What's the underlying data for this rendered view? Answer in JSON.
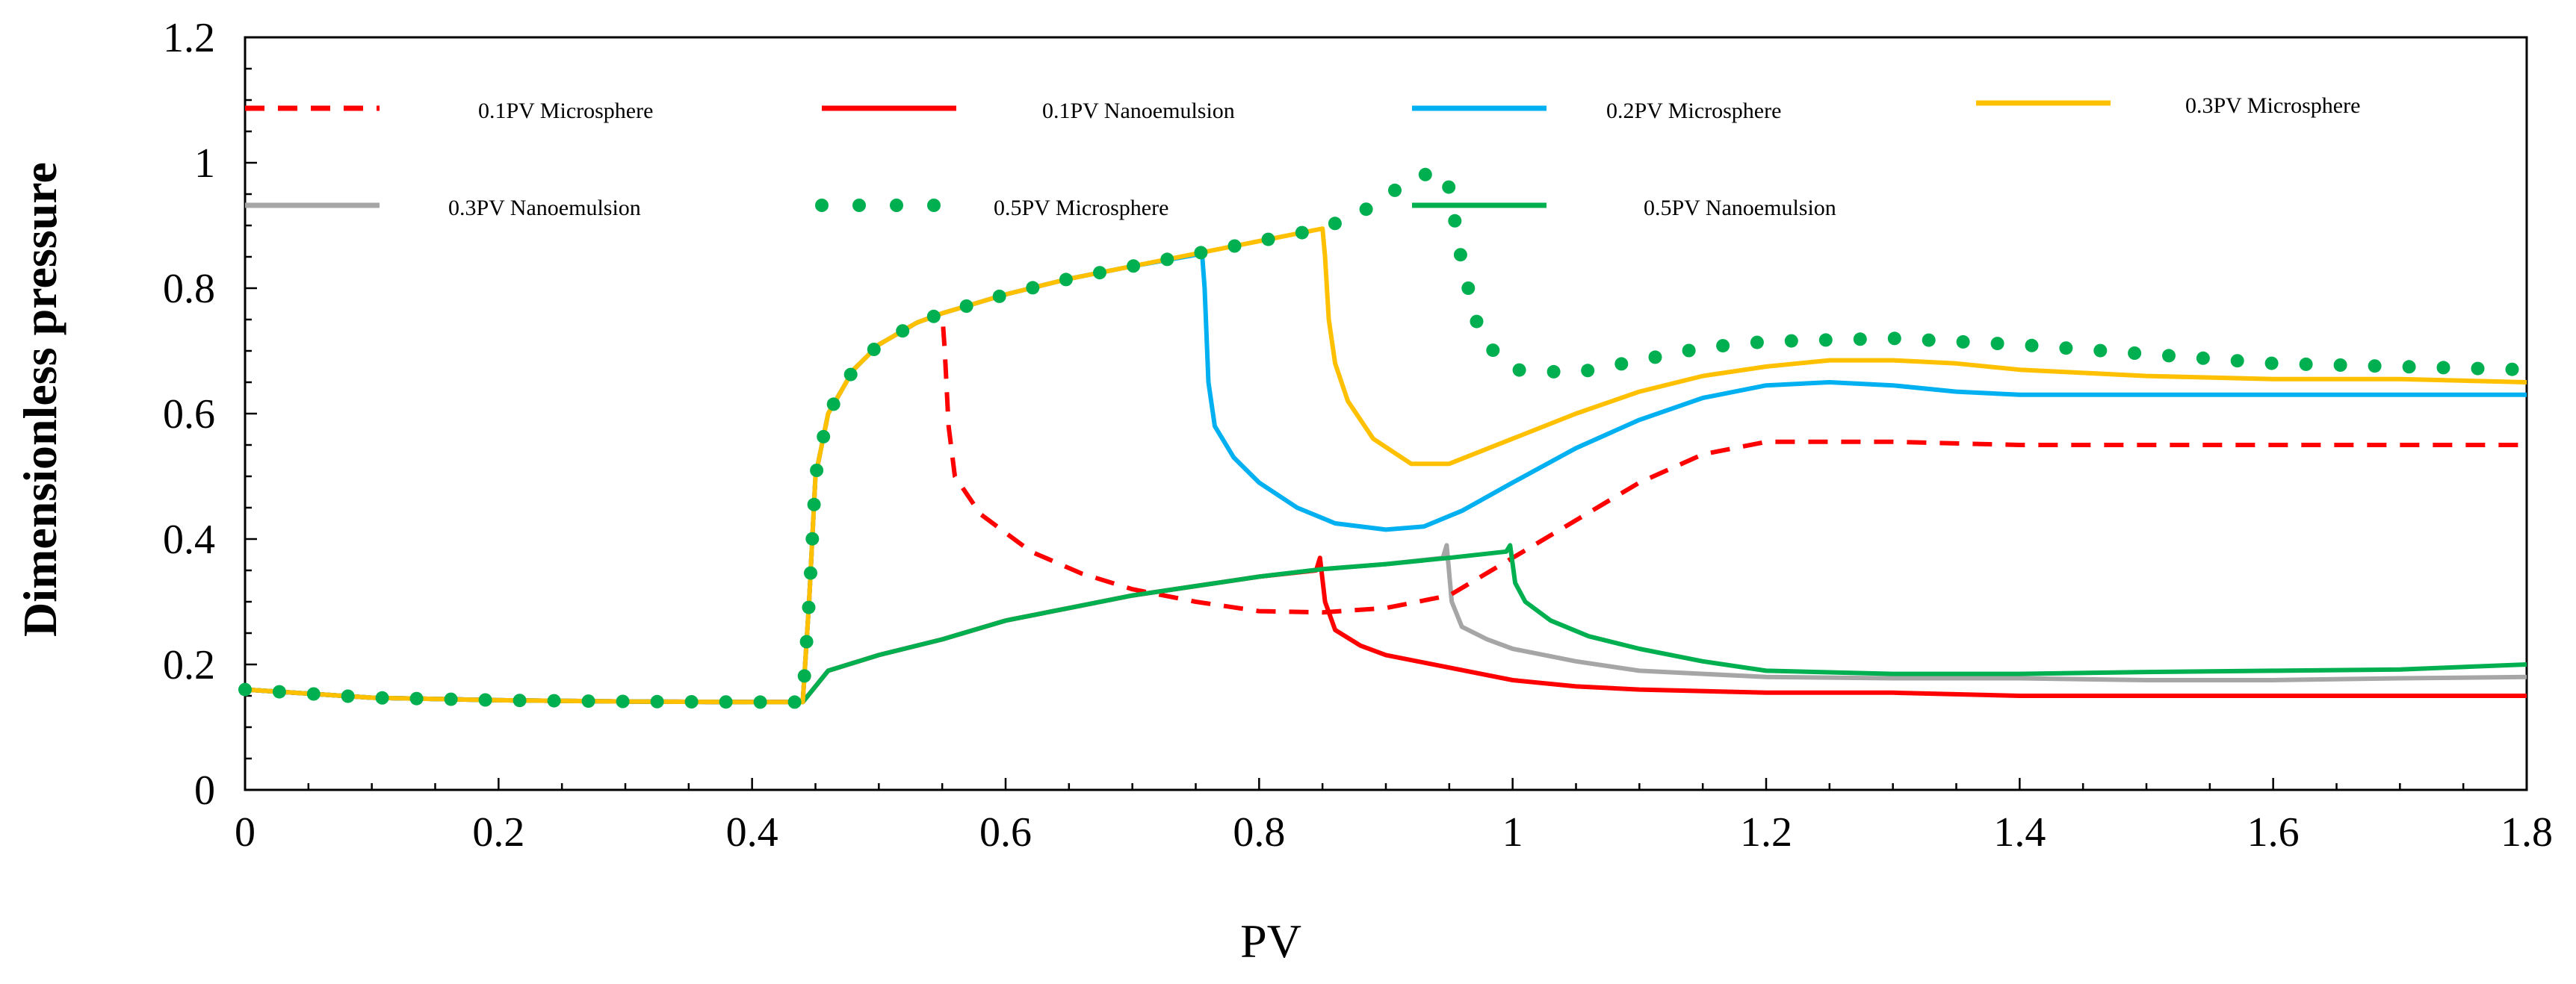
{
  "chart_data": {
    "type": "line",
    "title": "",
    "xlabel": "PV",
    "ylabel": "Dimensionless pressure",
    "xlim": [
      0,
      1.8
    ],
    "ylim": [
      0,
      1.2
    ],
    "xticks": [
      0,
      0.2,
      0.4,
      0.6,
      0.8,
      1,
      1.2,
      1.4,
      1.6,
      1.8
    ],
    "xtick_labels": [
      "0",
      "0.2",
      "0.4",
      "0.6",
      "0.8",
      "1",
      "1.2",
      "1.4",
      "1.6",
      "1.8"
    ],
    "yticks": [
      0,
      0.2,
      0.4,
      0.6,
      0.8,
      1,
      1.2
    ],
    "ytick_labels": [
      "0",
      "0.2",
      "0.4",
      "0.6",
      "0.8",
      "1",
      "1.2"
    ],
    "grid": false,
    "legend_position": "top, inside plot",
    "series": [
      {
        "name": "0.1PV Microsphere",
        "color": "#ff0000",
        "style": "dashed",
        "points": [
          [
            0,
            0.16
          ],
          [
            0.1,
            0.147
          ],
          [
            0.2,
            0.143
          ],
          [
            0.3,
            0.141
          ],
          [
            0.4,
            0.14
          ],
          [
            0.44,
            0.14
          ],
          [
            0.445,
            0.3
          ],
          [
            0.45,
            0.5
          ],
          [
            0.46,
            0.6
          ],
          [
            0.48,
            0.67
          ],
          [
            0.5,
            0.71
          ],
          [
            0.53,
            0.745
          ],
          [
            0.55,
            0.76
          ],
          [
            0.552,
            0.7
          ],
          [
            0.555,
            0.58
          ],
          [
            0.56,
            0.5
          ],
          [
            0.58,
            0.44
          ],
          [
            0.62,
            0.38
          ],
          [
            0.66,
            0.345
          ],
          [
            0.7,
            0.32
          ],
          [
            0.75,
            0.3
          ],
          [
            0.8,
            0.285
          ],
          [
            0.85,
            0.283
          ],
          [
            0.9,
            0.29
          ],
          [
            0.95,
            0.31
          ],
          [
            1.0,
            0.37
          ],
          [
            1.05,
            0.43
          ],
          [
            1.1,
            0.49
          ],
          [
            1.15,
            0.535
          ],
          [
            1.2,
            0.555
          ],
          [
            1.3,
            0.555
          ],
          [
            1.4,
            0.55
          ],
          [
            1.5,
            0.55
          ],
          [
            1.6,
            0.55
          ],
          [
            1.7,
            0.55
          ],
          [
            1.8,
            0.55
          ]
        ]
      },
      {
        "name": "0.1PV Nanoemulsion",
        "color": "#ff0000",
        "style": "solid",
        "points": [
          [
            0,
            0.16
          ],
          [
            0.1,
            0.147
          ],
          [
            0.2,
            0.143
          ],
          [
            0.3,
            0.141
          ],
          [
            0.4,
            0.14
          ],
          [
            0.44,
            0.14
          ],
          [
            0.46,
            0.19
          ],
          [
            0.5,
            0.215
          ],
          [
            0.55,
            0.24
          ],
          [
            0.6,
            0.27
          ],
          [
            0.65,
            0.29
          ],
          [
            0.7,
            0.31
          ],
          [
            0.75,
            0.325
          ],
          [
            0.8,
            0.34
          ],
          [
            0.845,
            0.35
          ],
          [
            0.848,
            0.37
          ],
          [
            0.852,
            0.3
          ],
          [
            0.86,
            0.255
          ],
          [
            0.88,
            0.23
          ],
          [
            0.9,
            0.215
          ],
          [
            0.95,
            0.195
          ],
          [
            1.0,
            0.175
          ],
          [
            1.05,
            0.165
          ],
          [
            1.1,
            0.16
          ],
          [
            1.2,
            0.155
          ],
          [
            1.3,
            0.155
          ],
          [
            1.4,
            0.15
          ],
          [
            1.5,
            0.15
          ],
          [
            1.6,
            0.15
          ],
          [
            1.7,
            0.15
          ],
          [
            1.8,
            0.15
          ]
        ]
      },
      {
        "name": "0.2PV Microsphere",
        "color": "#00b0f0",
        "style": "solid",
        "points": [
          [
            0,
            0.16
          ],
          [
            0.1,
            0.147
          ],
          [
            0.2,
            0.143
          ],
          [
            0.3,
            0.141
          ],
          [
            0.4,
            0.14
          ],
          [
            0.44,
            0.14
          ],
          [
            0.445,
            0.3
          ],
          [
            0.45,
            0.5
          ],
          [
            0.46,
            0.6
          ],
          [
            0.48,
            0.67
          ],
          [
            0.5,
            0.71
          ],
          [
            0.53,
            0.745
          ],
          [
            0.55,
            0.76
          ],
          [
            0.6,
            0.79
          ],
          [
            0.65,
            0.815
          ],
          [
            0.7,
            0.835
          ],
          [
            0.755,
            0.855
          ],
          [
            0.757,
            0.8
          ],
          [
            0.76,
            0.65
          ],
          [
            0.765,
            0.58
          ],
          [
            0.78,
            0.53
          ],
          [
            0.8,
            0.49
          ],
          [
            0.83,
            0.45
          ],
          [
            0.86,
            0.425
          ],
          [
            0.9,
            0.415
          ],
          [
            0.93,
            0.42
          ],
          [
            0.96,
            0.445
          ],
          [
            1.0,
            0.49
          ],
          [
            1.05,
            0.545
          ],
          [
            1.1,
            0.59
          ],
          [
            1.15,
            0.625
          ],
          [
            1.2,
            0.645
          ],
          [
            1.25,
            0.65
          ],
          [
            1.3,
            0.645
          ],
          [
            1.35,
            0.635
          ],
          [
            1.4,
            0.63
          ],
          [
            1.5,
            0.63
          ],
          [
            1.6,
            0.63
          ],
          [
            1.7,
            0.63
          ],
          [
            1.8,
            0.63
          ]
        ]
      },
      {
        "name": "0.3PV Microsphere",
        "color": "#ffc000",
        "style": "solid",
        "points": [
          [
            0,
            0.16
          ],
          [
            0.1,
            0.147
          ],
          [
            0.2,
            0.143
          ],
          [
            0.3,
            0.141
          ],
          [
            0.4,
            0.14
          ],
          [
            0.44,
            0.14
          ],
          [
            0.445,
            0.3
          ],
          [
            0.45,
            0.5
          ],
          [
            0.46,
            0.6
          ],
          [
            0.48,
            0.67
          ],
          [
            0.5,
            0.71
          ],
          [
            0.53,
            0.745
          ],
          [
            0.55,
            0.76
          ],
          [
            0.6,
            0.79
          ],
          [
            0.65,
            0.815
          ],
          [
            0.7,
            0.835
          ],
          [
            0.75,
            0.855
          ],
          [
            0.8,
            0.875
          ],
          [
            0.85,
            0.895
          ],
          [
            0.852,
            0.85
          ],
          [
            0.855,
            0.75
          ],
          [
            0.86,
            0.68
          ],
          [
            0.87,
            0.62
          ],
          [
            0.89,
            0.56
          ],
          [
            0.92,
            0.52
          ],
          [
            0.95,
            0.52
          ],
          [
            1.0,
            0.56
          ],
          [
            1.05,
            0.6
          ],
          [
            1.1,
            0.635
          ],
          [
            1.15,
            0.66
          ],
          [
            1.2,
            0.675
          ],
          [
            1.25,
            0.685
          ],
          [
            1.3,
            0.685
          ],
          [
            1.35,
            0.68
          ],
          [
            1.4,
            0.67
          ],
          [
            1.5,
            0.66
          ],
          [
            1.6,
            0.655
          ],
          [
            1.7,
            0.655
          ],
          [
            1.8,
            0.65
          ]
        ]
      },
      {
        "name": "0.3PV Nanoemulsion",
        "color": "#a6a6a6",
        "style": "solid",
        "points": [
          [
            0,
            0.16
          ],
          [
            0.1,
            0.147
          ],
          [
            0.2,
            0.143
          ],
          [
            0.3,
            0.141
          ],
          [
            0.4,
            0.14
          ],
          [
            0.44,
            0.14
          ],
          [
            0.46,
            0.19
          ],
          [
            0.5,
            0.215
          ],
          [
            0.55,
            0.24
          ],
          [
            0.6,
            0.27
          ],
          [
            0.65,
            0.29
          ],
          [
            0.7,
            0.31
          ],
          [
            0.75,
            0.325
          ],
          [
            0.8,
            0.34
          ],
          [
            0.85,
            0.352
          ],
          [
            0.9,
            0.36
          ],
          [
            0.945,
            0.37
          ],
          [
            0.948,
            0.39
          ],
          [
            0.952,
            0.3
          ],
          [
            0.96,
            0.26
          ],
          [
            0.98,
            0.24
          ],
          [
            1.0,
            0.225
          ],
          [
            1.05,
            0.205
          ],
          [
            1.1,
            0.19
          ],
          [
            1.2,
            0.18
          ],
          [
            1.3,
            0.178
          ],
          [
            1.4,
            0.178
          ],
          [
            1.5,
            0.175
          ],
          [
            1.6,
            0.175
          ],
          [
            1.7,
            0.178
          ],
          [
            1.8,
            0.18
          ]
        ]
      },
      {
        "name": "0.5PV Microsphere",
        "color": "#00b050",
        "style": "dotted",
        "points": [
          [
            0,
            0.16
          ],
          [
            0.1,
            0.147
          ],
          [
            0.2,
            0.143
          ],
          [
            0.3,
            0.141
          ],
          [
            0.4,
            0.14
          ],
          [
            0.44,
            0.14
          ],
          [
            0.445,
            0.3
          ],
          [
            0.45,
            0.5
          ],
          [
            0.46,
            0.6
          ],
          [
            0.48,
            0.67
          ],
          [
            0.5,
            0.71
          ],
          [
            0.53,
            0.745
          ],
          [
            0.55,
            0.76
          ],
          [
            0.6,
            0.79
          ],
          [
            0.65,
            0.815
          ],
          [
            0.7,
            0.835
          ],
          [
            0.75,
            0.855
          ],
          [
            0.8,
            0.875
          ],
          [
            0.85,
            0.895
          ],
          [
            0.88,
            0.92
          ],
          [
            0.91,
            0.96
          ],
          [
            0.94,
            0.99
          ],
          [
            0.95,
            0.96
          ],
          [
            0.96,
            0.84
          ],
          [
            0.975,
            0.72
          ],
          [
            1.0,
            0.67
          ],
          [
            1.05,
            0.665
          ],
          [
            1.1,
            0.685
          ],
          [
            1.15,
            0.705
          ],
          [
            1.2,
            0.715
          ],
          [
            1.3,
            0.72
          ],
          [
            1.4,
            0.71
          ],
          [
            1.5,
            0.695
          ],
          [
            1.6,
            0.68
          ],
          [
            1.7,
            0.675
          ],
          [
            1.8,
            0.67
          ]
        ]
      },
      {
        "name": "0.5PV Nanoemulsion",
        "color": "#00b050",
        "style": "solid",
        "points": [
          [
            0,
            0.16
          ],
          [
            0.1,
            0.147
          ],
          [
            0.2,
            0.143
          ],
          [
            0.3,
            0.141
          ],
          [
            0.4,
            0.14
          ],
          [
            0.44,
            0.14
          ],
          [
            0.46,
            0.19
          ],
          [
            0.5,
            0.215
          ],
          [
            0.55,
            0.24
          ],
          [
            0.6,
            0.27
          ],
          [
            0.65,
            0.29
          ],
          [
            0.7,
            0.31
          ],
          [
            0.75,
            0.325
          ],
          [
            0.8,
            0.34
          ],
          [
            0.85,
            0.352
          ],
          [
            0.9,
            0.36
          ],
          [
            0.95,
            0.37
          ],
          [
            0.995,
            0.38
          ],
          [
            0.998,
            0.39
          ],
          [
            1.002,
            0.33
          ],
          [
            1.01,
            0.3
          ],
          [
            1.03,
            0.27
          ],
          [
            1.06,
            0.245
          ],
          [
            1.1,
            0.225
          ],
          [
            1.15,
            0.205
          ],
          [
            1.2,
            0.19
          ],
          [
            1.3,
            0.185
          ],
          [
            1.4,
            0.185
          ],
          [
            1.5,
            0.188
          ],
          [
            1.6,
            0.19
          ],
          [
            1.7,
            0.192
          ],
          [
            1.8,
            0.2
          ]
        ]
      }
    ]
  }
}
